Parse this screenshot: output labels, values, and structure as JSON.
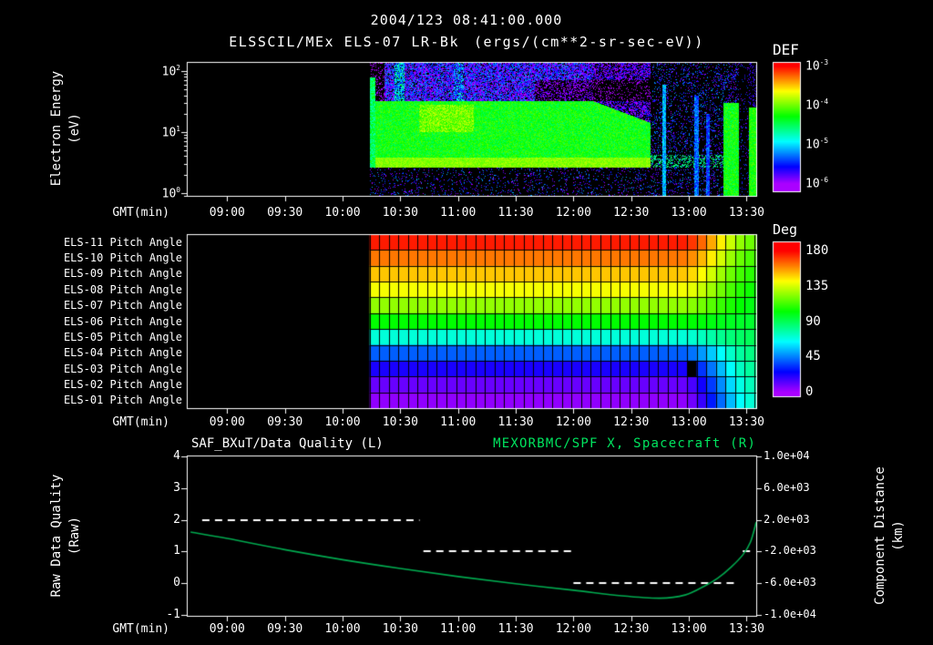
{
  "header": {
    "timestamp": "2004/123 08:41:00.000",
    "title": "ELSSCIL/MEx ELS-07 LR-Bk",
    "units": "(ergs/(cm**2-sr-sec-eV))"
  },
  "time_axis": {
    "label": "GMT(min)",
    "ticks": [
      "09:00",
      "09:30",
      "10:00",
      "10:30",
      "11:00",
      "11:30",
      "12:00",
      "12:30",
      "13:00",
      "13:30"
    ],
    "tick_minutes": [
      540,
      570,
      600,
      630,
      660,
      690,
      720,
      750,
      780,
      810
    ],
    "range_minutes": [
      519,
      815
    ]
  },
  "colors": {
    "background": "#000000",
    "text": "#ffffff",
    "green_text": "#00e55f",
    "curve_green": "#00a94f"
  },
  "chart_data": [
    {
      "type": "heatmap",
      "name": "electron-energy-spectrogram",
      "title": "ELSSCIL/MEx ELS-07 LR-Bk",
      "units": "ergs/(cm**2-sr-sec-eV)",
      "ylabel_lines": [
        "Electron Energy",
        "(eV)"
      ],
      "xlabel": "GMT(min)",
      "y_scale": "log",
      "y_ticks": [
        "10^0",
        "10^1",
        "10^2"
      ],
      "y_range_log10_ev": [
        -0.05,
        2.15
      ],
      "colorbar": {
        "title": "DEF",
        "scale": "log",
        "ticks": [
          "10^-3",
          "10^-4",
          "10^-5",
          "10^-6"
        ]
      },
      "data_coverage_minutes": [
        614,
        815
      ],
      "features": [
        {
          "gmt": [
            "10:14",
            "12:40"
          ],
          "energy_ev": [
            30,
            140
          ],
          "log10_flux": -5.7,
          "appearance": "blue-violet noise"
        },
        {
          "gmt": [
            "10:14",
            "12:40"
          ],
          "energy_ev": [
            4,
            28
          ],
          "log10_flux": -4.3,
          "appearance": "bright green band"
        },
        {
          "gmt": [
            "10:14",
            "13:30"
          ],
          "energy_ev": [
            2.6,
            4
          ],
          "log10_flux": -3.95,
          "appearance": "bright chartreuse line"
        },
        {
          "gmt": [
            "10:40",
            "11:05"
          ],
          "energy_ev": [
            10,
            28
          ],
          "log10_flux": -4.0,
          "appearance": "yellow-green enhancement"
        },
        {
          "gmt": [
            "12:00",
            "12:40"
          ],
          "energy_ev": [
            32,
            70
          ],
          "log10_flux": -6.2,
          "appearance": "dark dropout band"
        },
        {
          "gmt": [
            "12:40",
            "13:18"
          ],
          "energy_ev": [
            1,
            140
          ],
          "log10_flux": -5.9,
          "appearance": "sparse speckle with cyan stripes near 12:47 and 13:04"
        },
        {
          "gmt": [
            "13:18",
            "13:26"
          ],
          "energy_ev": [
            1,
            30
          ],
          "log10_flux": -4.3,
          "appearance": "green patch"
        },
        {
          "gmt": [
            "13:31",
            "13:35"
          ],
          "energy_ev": [
            1,
            25
          ],
          "log10_flux": -4.25,
          "appearance": "green strip at right edge"
        }
      ]
    },
    {
      "type": "heatmap",
      "name": "pitch-angle-grid",
      "colorbar": {
        "title": "Deg",
        "ticks": [
          "180",
          "135",
          "90",
          "45",
          "0"
        ],
        "range_deg": [
          0,
          180
        ]
      },
      "data_coverage_minutes": [
        614,
        815
      ],
      "cell_minutes": 5,
      "rotation_start_minute": 775,
      "rows": [
        {
          "label": "ELS-11 Pitch Angle",
          "start_deg": 176,
          "end_deg": 118
        },
        {
          "label": "ELS-10 Pitch Angle",
          "start_deg": 162,
          "end_deg": 113
        },
        {
          "label": "ELS-09 Pitch Angle",
          "start_deg": 150,
          "end_deg": 108
        },
        {
          "label": "ELS-08 Pitch Angle",
          "start_deg": 140,
          "end_deg": 104
        },
        {
          "label": "ELS-07 Pitch Angle",
          "start_deg": 125,
          "end_deg": 100
        },
        {
          "label": "ELS-06 Pitch Angle",
          "start_deg": 103,
          "end_deg": 96
        },
        {
          "label": "ELS-05 Pitch Angle",
          "start_deg": 70,
          "end_deg": 90
        },
        {
          "label": "ELS-04 Pitch Angle",
          "start_deg": 40,
          "end_deg": 84
        },
        {
          "label": "ELS-03 Pitch Angle",
          "start_deg": 22,
          "end_deg": 80
        },
        {
          "label": "ELS-02 Pitch Angle",
          "start_deg": 10,
          "end_deg": 76
        },
        {
          "label": "ELS-01 Pitch Angle",
          "start_deg": 4,
          "end_deg": 72
        }
      ],
      "missing_cells": [
        {
          "row": "ELS-03",
          "minute": 780
        }
      ]
    },
    {
      "type": "line",
      "name": "data-quality-and-spacecraft-x",
      "left_title": "SAF_BXuT/Data Quality (L)",
      "right_title": "MEXORBMC/SPF X, Spacecraft (R)",
      "xlabel": "GMT(min)",
      "left_axis": {
        "label_lines": [
          "Raw Data Quality",
          "(Raw)"
        ],
        "ticks": [
          "4",
          "3",
          "2",
          "1",
          "0",
          "-1"
        ],
        "range": [
          -1,
          4
        ]
      },
      "right_axis": {
        "label_lines": [
          "Component Distance",
          "(km)"
        ],
        "ticks": [
          "1.0e+04",
          "6.0e+03",
          "2.0e+03",
          "-2.0e+03",
          "-6.0e+03",
          "-1.0e+04"
        ],
        "range_km": [
          -10000,
          10000
        ]
      },
      "series": [
        {
          "name": "data-quality",
          "axis": "left",
          "style": "dashed",
          "color": "#ffffff",
          "segments": [
            {
              "value": 2,
              "minutes": [
                527,
                640
              ]
            },
            {
              "value": 1,
              "minutes": [
                642,
                719
              ]
            },
            {
              "value": 0,
              "minutes": [
                720,
                805
              ]
            },
            {
              "value": 1,
              "minutes": [
                808,
                813
              ]
            }
          ]
        },
        {
          "name": "spacecraft-x-distance",
          "axis": "right",
          "style": "solid",
          "color": "#00a94f",
          "points": [
            [
              521,
              450
            ],
            [
              540,
              -350
            ],
            [
              570,
              -1750
            ],
            [
              600,
              -3000
            ],
            [
              630,
              -4100
            ],
            [
              660,
              -5100
            ],
            [
              690,
              -6000
            ],
            [
              720,
              -6800
            ],
            [
              745,
              -7500
            ],
            [
              765,
              -7800
            ],
            [
              778,
              -7400
            ],
            [
              788,
              -6300
            ],
            [
              795,
              -5300
            ],
            [
              802,
              -3900
            ],
            [
              808,
              -2400
            ],
            [
              812,
              -800
            ],
            [
              815,
              1700
            ]
          ]
        }
      ]
    }
  ]
}
